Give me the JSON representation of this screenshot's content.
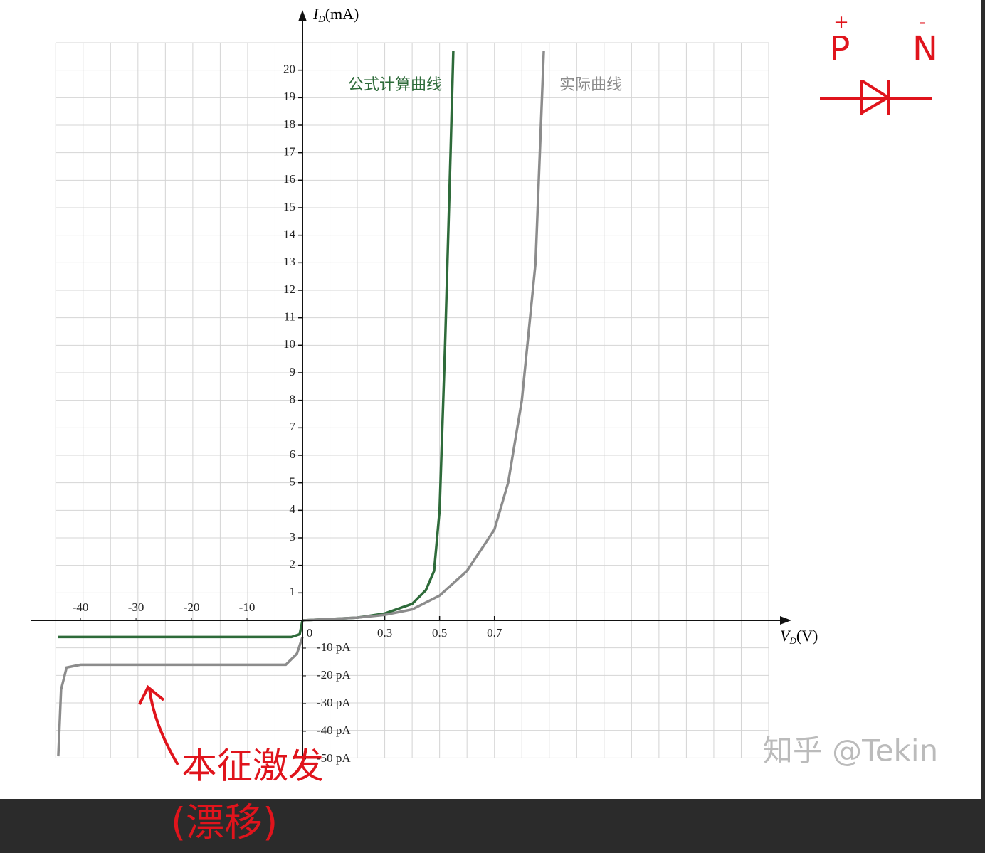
{
  "chart_data": {
    "type": "line",
    "x_label": {
      "main": "V",
      "sub": "D",
      "unit": "(V)"
    },
    "y_label": {
      "main": "I",
      "sub": "D",
      "unit": "(mA)"
    },
    "xlim": [
      0,
      1.7
    ],
    "ylim": [
      0,
      21
    ],
    "xticks": [
      0,
      0.3,
      0.5,
      0.7
    ],
    "yticks": [
      1,
      2,
      3,
      4,
      5,
      6,
      7,
      8,
      9,
      10,
      11,
      12,
      13,
      14,
      15,
      16,
      17,
      18,
      19,
      20
    ],
    "grid": true,
    "series": [
      {
        "name": "公式计算曲线",
        "color": "#2e6b3a",
        "x": [
          0,
          0.1,
          0.2,
          0.3,
          0.4,
          0.45,
          0.48,
          0.5,
          0.52,
          0.54,
          0.55
        ],
        "values": [
          0,
          0.05,
          0.1,
          0.25,
          0.6,
          1.1,
          1.8,
          4,
          10,
          17,
          20.7
        ]
      },
      {
        "name": "实际曲线",
        "color": "#8c8c8c",
        "x": [
          0,
          0.1,
          0.2,
          0.3,
          0.4,
          0.5,
          0.6,
          0.7,
          0.75,
          0.8,
          0.85,
          0.88
        ],
        "values": [
          0,
          0.05,
          0.1,
          0.2,
          0.4,
          0.9,
          1.8,
          3.3,
          5,
          8,
          13,
          20.7
        ]
      }
    ],
    "reverse": {
      "xlim": [
        -44.5,
        0
      ],
      "ylim": [
        -49.5,
        0
      ],
      "xticks": [
        -40,
        -30,
        -20,
        -10
      ],
      "yticks": [
        {
          "value": -10,
          "label": "-10 pA"
        },
        {
          "value": -20,
          "label": "-20 pA"
        },
        {
          "value": -30,
          "label": "-30 pA"
        },
        {
          "value": -40,
          "label": "-40 pA"
        },
        {
          "value": -50,
          "label": "-50 pA"
        }
      ],
      "series": [
        {
          "color": "#2e6b3a",
          "x": [
            -44,
            -40,
            -10,
            -2,
            -0.5,
            0
          ],
          "values": [
            -6,
            -6,
            -6,
            -6,
            -5,
            0
          ]
        },
        {
          "color": "#8c8c8c",
          "x": [
            -44,
            -43.5,
            -42.5,
            -40,
            -10,
            -3,
            -1,
            0
          ],
          "values": [
            -49,
            -25,
            -17,
            -16,
            -16,
            -16,
            -12,
            -6
          ]
        }
      ]
    }
  },
  "annotations": {
    "p": "P",
    "p_sign": "+",
    "n": "N",
    "n_sign": "-",
    "note": "本征激发",
    "note2": "(漂移)"
  },
  "watermark": "知乎 @Tekin"
}
